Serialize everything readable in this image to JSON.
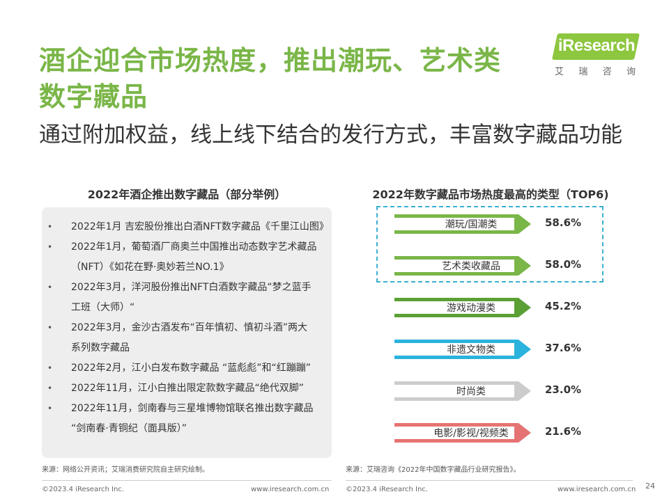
{
  "title": {
    "line1": "酒企迎合市场热度，推出潮玩、艺术类",
    "line2": "数字藏品",
    "subtitle": "通过附加权益，线上线下结合的发行方式，丰富数字藏品功能"
  },
  "logo": {
    "text": "iResearch",
    "sub": [
      "艾",
      "瑞",
      "咨",
      "询"
    ],
    "color": "#8dc63f"
  },
  "left": {
    "heading": "2022年酒企推出数字藏品（部分举例）",
    "items": [
      {
        "line1": "2022年1月 吉宏股份推出白酒NFT数字藏品《千里江山图》",
        "line2": ""
      },
      {
        "line1": "2022年1月，葡萄酒厂商奥兰中国推出动态数字艺术藏品",
        "line2": "（NFT）《如花在野·奥妙若兰NO.1》"
      },
      {
        "line1": "2022年3月，洋河股份推出NFT白酒数字藏品“梦之蓝手",
        "line2": "工班（大师）“"
      },
      {
        "line1": "2022年3月，金沙古酒发布“百年慎初、慎初斗酒”两大",
        "line2": "系列数字藏品"
      },
      {
        "line1": "2022年2月，江小白发布数字藏品 “蓝彪彪”和“红蹦蹦”",
        "line2": ""
      },
      {
        "line1": "2022年11月，江小白推出限定款数字藏品“绝代双脚”",
        "line2": ""
      },
      {
        "line1": "2022年11月，剑南春与三星堆博物馆联名推出数字藏品",
        "line2": "“剑南春·青铜纪（面具版）”"
      }
    ],
    "source": "来源：网络公开资讯；艾瑞消费研究院自主研究绘制。"
  },
  "chart_data": {
    "type": "bar",
    "title": "2022年数字藏品市场热度最高的类型（TOP6)",
    "categories": [
      "潮玩/国潮类",
      "艺术类收藏品",
      "游戏动漫类",
      "非遗文物类",
      "时尚类",
      "电影/影视/视频类"
    ],
    "values": [
      58.6,
      58.0,
      45.2,
      37.6,
      23.0,
      21.6
    ],
    "value_labels": [
      "58.6%",
      "58.0%",
      "45.2%",
      "37.6%",
      "23.0%",
      "21.6%"
    ],
    "colors": [
      "#7ab648",
      "#7ab648",
      "#5aa035",
      "#2ab3dc",
      "#cccccc",
      "#e57373"
    ],
    "highlighted": [
      0,
      1
    ]
  },
  "right": {
    "source": "来源：艾瑞咨询《2022年中国数字藏品行业研究报告》。"
  },
  "footer": {
    "copyright": "©2023.4 iResearch Inc.",
    "url": "www.iresearch.com.cn",
    "page": "24"
  }
}
